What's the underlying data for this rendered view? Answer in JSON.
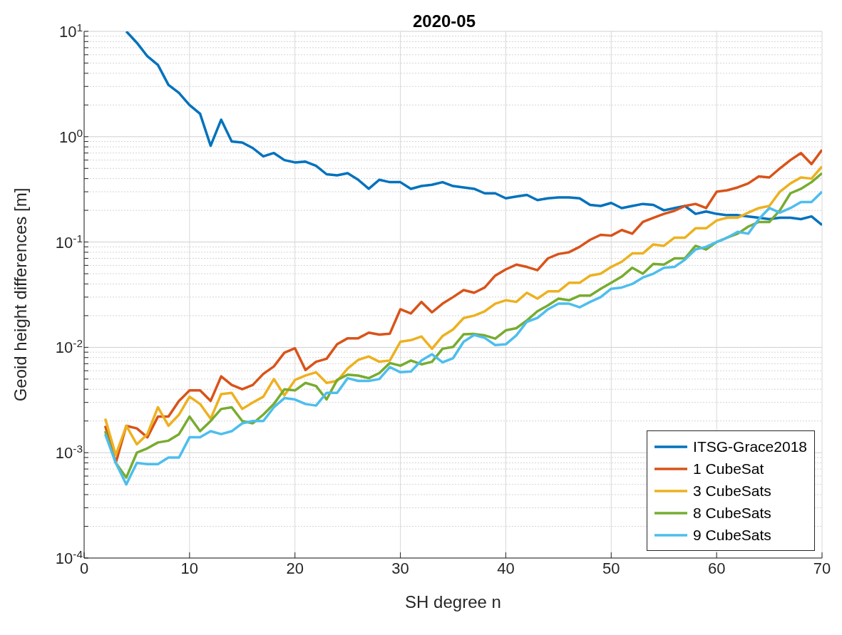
{
  "chart_data": {
    "type": "line",
    "title": "2020-05",
    "xlabel": "SH degree n",
    "ylabel": "Geoid height differences [m]",
    "x": [
      2,
      3,
      4,
      5,
      6,
      7,
      8,
      9,
      10,
      11,
      12,
      13,
      14,
      15,
      16,
      17,
      18,
      19,
      20,
      21,
      22,
      23,
      24,
      25,
      26,
      27,
      28,
      29,
      30,
      31,
      32,
      33,
      34,
      35,
      36,
      37,
      38,
      39,
      40,
      41,
      42,
      43,
      44,
      45,
      46,
      47,
      48,
      49,
      50,
      51,
      52,
      53,
      54,
      55,
      56,
      57,
      58,
      59,
      60,
      61,
      62,
      63,
      64,
      65,
      66,
      67,
      68,
      69,
      70
    ],
    "series": [
      {
        "name": "ITSG-Grace2018",
        "color": "#0072bd",
        "values": [
          null,
          null,
          10,
          7.8,
          5.8,
          4.8,
          3.1,
          2.6,
          2.0,
          1.65,
          0.82,
          1.45,
          0.9,
          0.88,
          0.78,
          0.65,
          0.7,
          0.6,
          0.57,
          0.58,
          0.53,
          0.44,
          0.43,
          0.45,
          0.39,
          0.32,
          0.39,
          0.37,
          0.37,
          0.32,
          0.34,
          0.35,
          0.37,
          0.34,
          0.33,
          0.32,
          0.29,
          0.29,
          0.26,
          0.27,
          0.28,
          0.25,
          0.26,
          0.265,
          0.265,
          0.26,
          0.225,
          0.22,
          0.235,
          0.21,
          0.22,
          0.23,
          0.225,
          0.2,
          0.21,
          0.22,
          0.185,
          0.195,
          0.185,
          0.18,
          0.18,
          0.175,
          0.17,
          0.165,
          0.17,
          0.17,
          0.165,
          0.175,
          0.145
        ]
      },
      {
        "name": "1 CubeSat",
        "color": "#d95319",
        "values": [
          0.0018,
          0.0008,
          0.0018,
          0.0017,
          0.0014,
          0.0022,
          0.0022,
          0.0031,
          0.0039,
          0.0039,
          0.0031,
          0.0053,
          0.0044,
          0.004,
          0.0044,
          0.0056,
          0.0066,
          0.0089,
          0.0098,
          0.0061,
          0.0073,
          0.0078,
          0.0107,
          0.0122,
          0.0122,
          0.0138,
          0.0132,
          0.0135,
          0.023,
          0.021,
          0.027,
          0.0215,
          0.026,
          0.03,
          0.035,
          0.033,
          0.037,
          0.048,
          0.055,
          0.061,
          0.058,
          0.054,
          0.07,
          0.077,
          0.08,
          0.09,
          0.105,
          0.117,
          0.115,
          0.13,
          0.12,
          0.155,
          0.17,
          0.185,
          0.198,
          0.22,
          0.23,
          0.21,
          0.3,
          0.31,
          0.33,
          0.36,
          0.42,
          0.41,
          0.5,
          0.6,
          0.7,
          0.55,
          0.75
        ]
      },
      {
        "name": "3 CubeSats",
        "color": "#edb120",
        "values": [
          0.0021,
          0.00095,
          0.0018,
          0.0012,
          0.0015,
          0.0027,
          0.0018,
          0.0023,
          0.0034,
          0.0029,
          0.0021,
          0.0036,
          0.0037,
          0.0026,
          0.003,
          0.0034,
          0.005,
          0.0035,
          0.0049,
          0.0054,
          0.0058,
          0.0046,
          0.0048,
          0.0063,
          0.0076,
          0.0082,
          0.0073,
          0.0075,
          0.0113,
          0.0117,
          0.0127,
          0.0097,
          0.0128,
          0.0148,
          0.019,
          0.02,
          0.022,
          0.026,
          0.028,
          0.027,
          0.033,
          0.029,
          0.034,
          0.034,
          0.041,
          0.041,
          0.048,
          0.05,
          0.058,
          0.065,
          0.078,
          0.078,
          0.095,
          0.092,
          0.11,
          0.11,
          0.135,
          0.135,
          0.16,
          0.17,
          0.17,
          0.19,
          0.21,
          0.22,
          0.3,
          0.36,
          0.41,
          0.4,
          0.52
        ]
      },
      {
        "name": "8 CubeSats",
        "color": "#77ac30",
        "values": [
          0.0016,
          0.0008,
          0.00058,
          0.001,
          0.0011,
          0.00125,
          0.0013,
          0.0015,
          0.0022,
          0.0016,
          0.002,
          0.0026,
          0.0027,
          0.002,
          0.0019,
          0.0023,
          0.0029,
          0.004,
          0.0039,
          0.0046,
          0.0043,
          0.0032,
          0.0049,
          0.0055,
          0.0054,
          0.0051,
          0.0057,
          0.0071,
          0.0067,
          0.0075,
          0.0069,
          0.0073,
          0.0097,
          0.0101,
          0.0133,
          0.0134,
          0.013,
          0.0121,
          0.0145,
          0.0152,
          0.018,
          0.022,
          0.025,
          0.029,
          0.028,
          0.031,
          0.031,
          0.036,
          0.041,
          0.047,
          0.057,
          0.05,
          0.062,
          0.061,
          0.07,
          0.07,
          0.092,
          0.085,
          0.1,
          0.11,
          0.12,
          0.14,
          0.155,
          0.155,
          0.2,
          0.29,
          0.32,
          0.37,
          0.45
        ]
      },
      {
        "name": "9 CubeSats",
        "color": "#4dbeee",
        "values": [
          0.0015,
          0.0008,
          0.0005,
          0.0008,
          0.00078,
          0.00078,
          0.0009,
          0.0009,
          0.0014,
          0.0014,
          0.0016,
          0.0015,
          0.0016,
          0.0019,
          0.002,
          0.002,
          0.0027,
          0.0033,
          0.0032,
          0.0029,
          0.0028,
          0.0037,
          0.0037,
          0.0051,
          0.0048,
          0.0048,
          0.005,
          0.0065,
          0.0058,
          0.0059,
          0.0075,
          0.0086,
          0.0072,
          0.0079,
          0.0113,
          0.0131,
          0.0123,
          0.0105,
          0.0107,
          0.013,
          0.0175,
          0.019,
          0.023,
          0.026,
          0.026,
          0.024,
          0.027,
          0.03,
          0.036,
          0.037,
          0.04,
          0.046,
          0.05,
          0.057,
          0.058,
          0.068,
          0.085,
          0.09,
          0.1,
          0.11,
          0.125,
          0.12,
          0.165,
          0.21,
          0.19,
          0.21,
          0.24,
          0.24,
          0.3
        ]
      }
    ],
    "log": "y",
    "xlim": [
      0,
      70
    ],
    "xticks": [
      0,
      10,
      20,
      30,
      40,
      50,
      60,
      70
    ],
    "ylim": [
      0.0001,
      10
    ],
    "yticks": [
      {
        "value": 0.0001,
        "label": "10$^{-4}$"
      },
      {
        "value": 0.0002,
        "label": null
      },
      {
        "value": 0.0003,
        "label": null
      },
      {
        "value": 0.0004,
        "label": null
      },
      {
        "value": 0.0005,
        "label": null
      },
      {
        "value": 0.0006,
        "label": null
      },
      {
        "value": 0.0007,
        "label": null
      },
      {
        "value": 0.0008,
        "label": null
      },
      {
        "value": 0.0009,
        "label": null
      },
      {
        "value": 0.001,
        "label": "10$^{-3}$"
      },
      {
        "value": 0.002,
        "label": null
      },
      {
        "value": 0.003,
        "label": null
      },
      {
        "value": 0.004,
        "label": null
      },
      {
        "value": 0.005,
        "label": null
      },
      {
        "value": 0.006,
        "label": null
      },
      {
        "value": 0.007,
        "label": null
      },
      {
        "value": 0.008,
        "label": null
      },
      {
        "value": 0.009,
        "label": null
      },
      {
        "value": 0.01,
        "label": "10$^{-2}$"
      },
      {
        "value": 0.02,
        "label": null
      },
      {
        "value": 0.03,
        "label": null
      },
      {
        "value": 0.04,
        "label": null
      },
      {
        "value": 0.05,
        "label": null
      },
      {
        "value": 0.06,
        "label": null
      },
      {
        "value": 0.07,
        "label": null
      },
      {
        "value": 0.08,
        "label": null
      },
      {
        "value": 0.09,
        "label": null
      },
      {
        "value": 0.1,
        "label": "10$^{-1}$"
      },
      {
        "value": 0.2,
        "label": null
      },
      {
        "value": 0.3,
        "label": null
      },
      {
        "value": 0.4,
        "label": null
      },
      {
        "value": 0.5,
        "label": null
      },
      {
        "value": 0.6,
        "label": null
      },
      {
        "value": 0.7,
        "label": null
      },
      {
        "value": 0.8,
        "label": null
      },
      {
        "value": 0.9,
        "label": null
      },
      {
        "value": 1,
        "label": "10$^{0}$"
      },
      {
        "value": 2,
        "label": null
      },
      {
        "value": 3,
        "label": null
      },
      {
        "value": 4,
        "label": null
      },
      {
        "value": 5,
        "label": null
      },
      {
        "value": 6,
        "label": null
      },
      {
        "value": 7,
        "label": null
      },
      {
        "value": 8,
        "label": null
      },
      {
        "value": 9,
        "label": null
      },
      {
        "value": 10,
        "label": "10$^{1}$"
      }
    ],
    "grid": true,
    "legend": "bottom right",
    "marker": "none",
    "line_style": "solid"
  }
}
